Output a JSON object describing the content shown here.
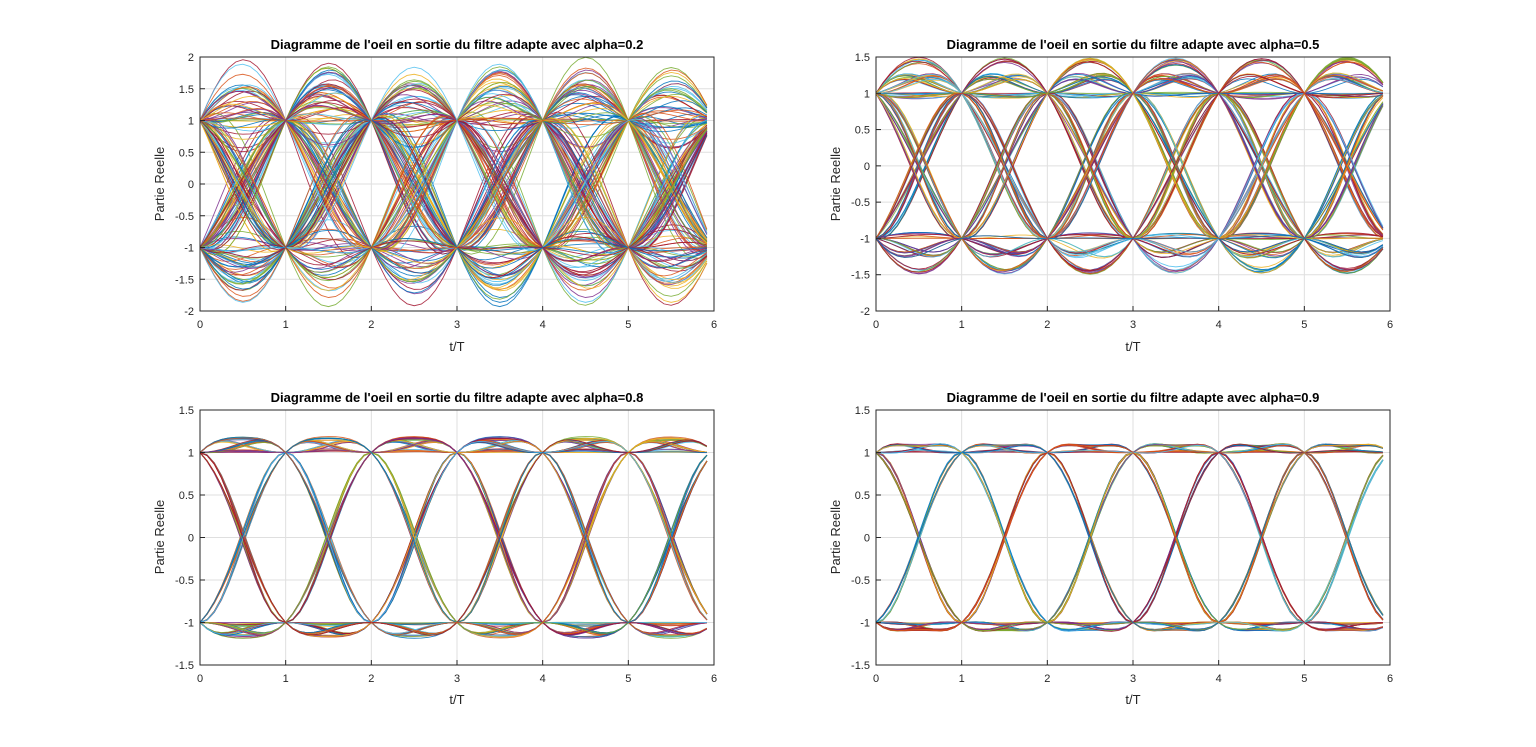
{
  "colors": [
    "#0072bd",
    "#d95319",
    "#edb120",
    "#7e2f8e",
    "#77ac30",
    "#4dbeee",
    "#a2142f"
  ],
  "chart_data": [
    {
      "type": "line",
      "title": "Diagramme de l'oeil en sortie du filtre adapte avec alpha=0.2",
      "xlabel": "t/T",
      "ylabel": "Partie Reelle",
      "xlim": [
        0,
        6
      ],
      "ylim": [
        -2,
        2
      ],
      "xticks": [
        "0",
        "1",
        "2",
        "3",
        "4",
        "5",
        "6"
      ],
      "yticks": [
        "-2",
        "-1.5",
        "-1",
        "-0.5",
        "0",
        "0.5",
        "1",
        "1.5",
        "2"
      ],
      "alpha": 0.2,
      "symbol_levels": [
        -1,
        1
      ],
      "grid": true
    },
    {
      "type": "line",
      "title": "Diagramme de l'oeil en sortie du filtre adapte avec alpha=0.5",
      "xlabel": "t/T",
      "ylabel": "Partie Reelle",
      "xlim": [
        0,
        6
      ],
      "ylim": [
        -2,
        1.5
      ],
      "xticks": [
        "0",
        "1",
        "2",
        "3",
        "4",
        "5",
        "6"
      ],
      "yticks": [
        "-2",
        "-1.5",
        "-1",
        "-0.5",
        "0",
        "0.5",
        "1",
        "1.5"
      ],
      "alpha": 0.5,
      "symbol_levels": [
        -1,
        1
      ],
      "grid": true
    },
    {
      "type": "line",
      "title": "Diagramme de l'oeil en sortie du filtre adapte avec alpha=0.8",
      "xlabel": "t/T",
      "ylabel": "Partie Reelle",
      "xlim": [
        0,
        6
      ],
      "ylim": [
        -1.5,
        1.5
      ],
      "xticks": [
        "0",
        "1",
        "2",
        "3",
        "4",
        "5",
        "6"
      ],
      "yticks": [
        "-1.5",
        "-1",
        "-0.5",
        "0",
        "0.5",
        "1",
        "1.5"
      ],
      "alpha": 0.8,
      "symbol_levels": [
        -1,
        1
      ],
      "grid": true
    },
    {
      "type": "line",
      "title": "Diagramme de l'oeil en sortie du filtre adapte avec alpha=0.9",
      "xlabel": "t/T",
      "ylabel": "Partie Reelle",
      "xlim": [
        0,
        6
      ],
      "ylim": [
        -1.5,
        1.5
      ],
      "xticks": [
        "0",
        "1",
        "2",
        "3",
        "4",
        "5",
        "6"
      ],
      "yticks": [
        "-1.5",
        "-1",
        "-0.5",
        "0",
        "0.5",
        "1",
        "1.5"
      ],
      "alpha": 0.9,
      "symbol_levels": [
        -1,
        1
      ],
      "grid": true
    }
  ]
}
